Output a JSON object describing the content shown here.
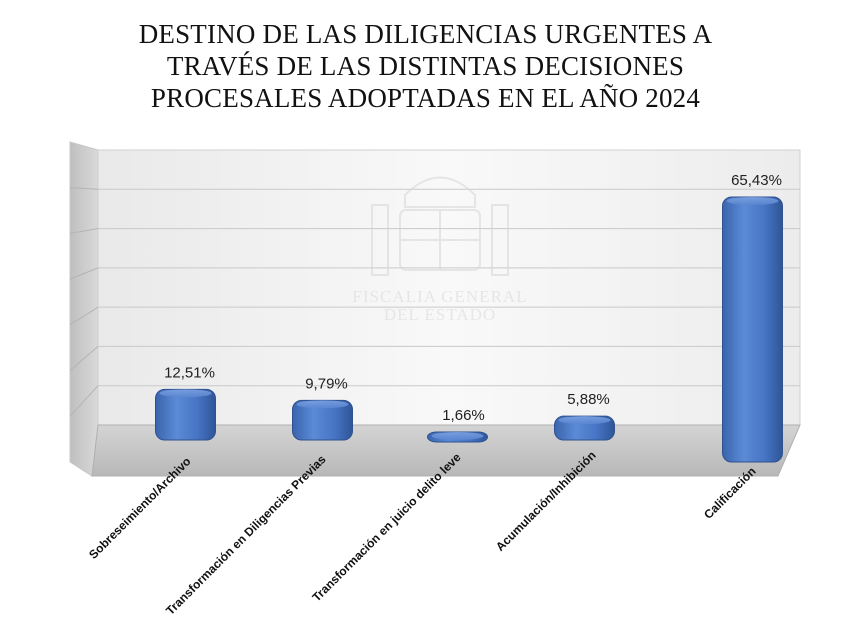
{
  "title": {
    "lines": [
      "DESTINO DE LAS DILIGENCIAS URGENTES A",
      "TRAVÉS DE LAS DISTINTAS DECISIONES",
      "PROCESALES ADOPTADAS EN EL AÑO 2024"
    ]
  },
  "watermark": {
    "lines": [
      "FISCALIA GENERAL",
      "DEL ESTADO"
    ]
  },
  "chart_data": {
    "type": "bar",
    "style": "3d",
    "title": "DESTINO DE LAS DILIGENCIAS URGENTES A TRAVÉS DE LAS DISTINTAS DECISIONES PROCESALES ADOPTADAS EN EL AÑO 2024",
    "categories": [
      "Sobreseimiento/Archivo",
      "Transformación en Diligencias Previas",
      "Transformación en juicio delito leve",
      "Acumulación/Inhibición",
      "Calificación"
    ],
    "values": [
      12.51,
      9.79,
      1.66,
      5.88,
      65.43
    ],
    "value_labels": [
      "12,51%",
      "9,79%",
      "1,66%",
      "5,88%",
      "65,43%"
    ],
    "unit": "%",
    "ylim": [
      0,
      70
    ],
    "grid": true,
    "legend": "none",
    "bar_color": "#4472c4"
  }
}
